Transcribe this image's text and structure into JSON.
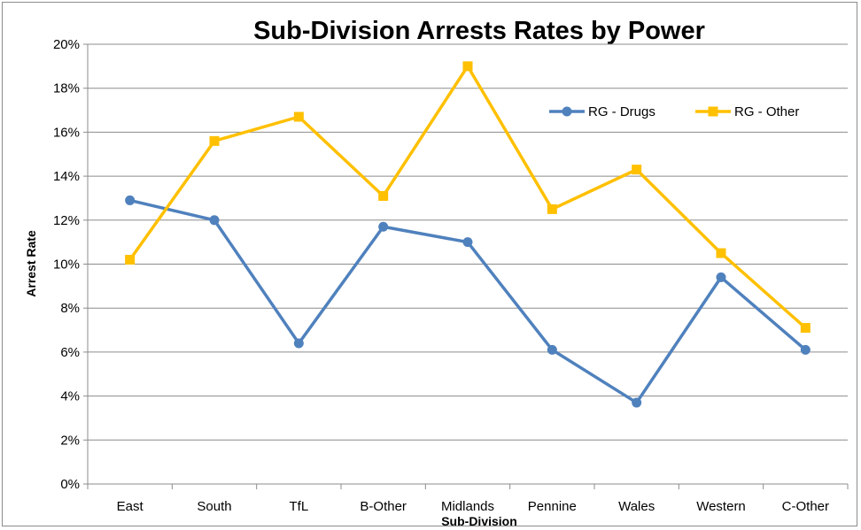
{
  "chart_data": {
    "type": "line",
    "title": "Sub-Division Arrests Rates by Power",
    "xlabel": "Sub-Division",
    "ylabel": "Arrest Rate",
    "categories": [
      "East",
      "South",
      "TfL",
      "B-Other",
      "Midlands",
      "Pennine",
      "Wales",
      "Western",
      "C-Other"
    ],
    "ylim": [
      0,
      20
    ],
    "yticks": [
      "0%",
      "2%",
      "4%",
      "6%",
      "8%",
      "10%",
      "12%",
      "14%",
      "16%",
      "18%",
      "20%"
    ],
    "grid": true,
    "legend_position": "top-right",
    "series": [
      {
        "name": "RG - Drugs",
        "color": "#4f81bd",
        "marker": "circle",
        "values": [
          12.9,
          12.0,
          6.4,
          11.7,
          11.0,
          6.1,
          3.7,
          9.4,
          6.1
        ]
      },
      {
        "name": "RG - Other",
        "color": "#ffc000",
        "marker": "square",
        "values": [
          10.2,
          15.6,
          16.7,
          13.1,
          19.0,
          12.5,
          14.3,
          10.5,
          7.1
        ]
      }
    ]
  }
}
